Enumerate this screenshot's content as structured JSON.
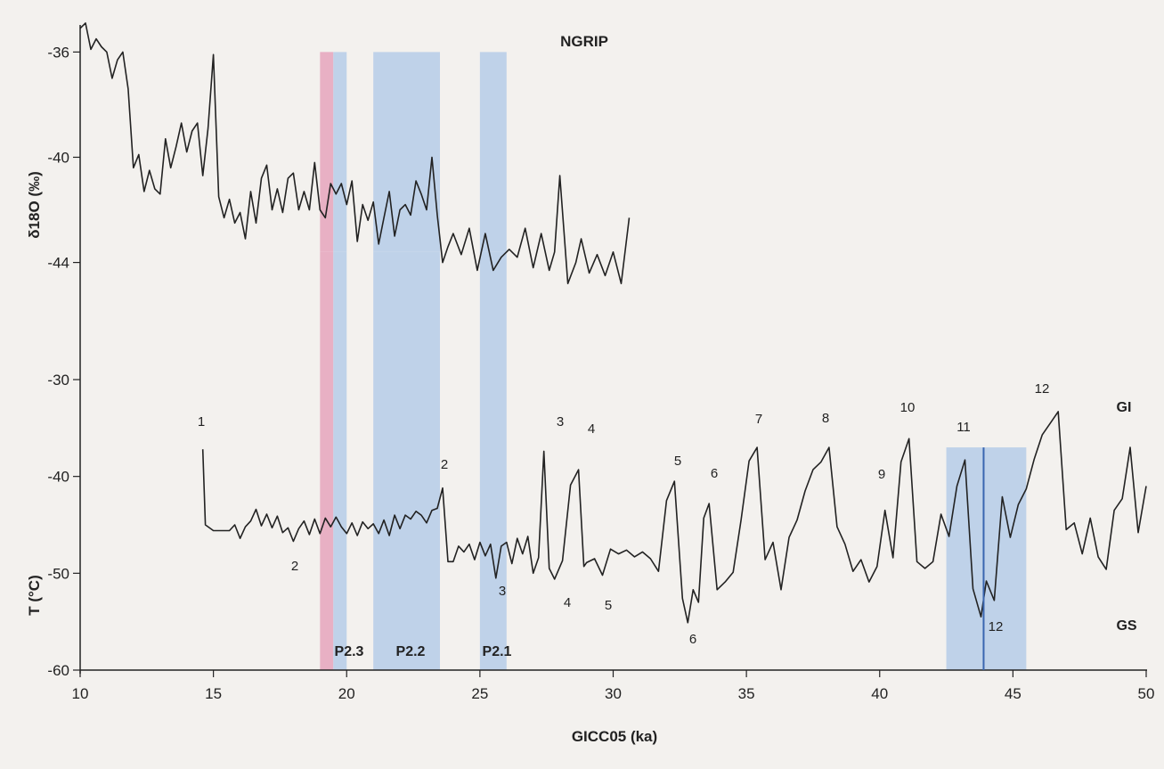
{
  "chart_data": [
    {
      "panel": "upper",
      "type": "line",
      "title": "NGRIP",
      "xlabel": "GICC05 (ka)",
      "ylabel": "δ18O (‰)",
      "ylim": [
        -45.2,
        -34.7
      ],
      "yticks": [
        "-36",
        "-40",
        "-44"
      ],
      "series": [
        {
          "x": [
            10.0,
            10.2,
            10.4,
            10.6,
            10.8,
            11.0,
            11.2,
            11.4,
            11.6,
            11.8,
            12.0,
            12.2,
            12.4,
            12.6,
            12.8,
            13.0,
            13.2,
            13.4,
            13.6,
            13.8,
            14.0,
            14.2,
            14.4,
            14.6,
            14.8,
            15.0,
            15.2,
            15.4,
            15.6,
            15.8,
            16.0,
            16.2,
            16.4,
            16.6,
            16.8,
            17.0,
            17.2,
            17.4,
            17.6,
            17.8,
            18.0,
            18.2,
            18.4,
            18.6,
            18.8,
            19.0,
            19.2,
            19.4,
            19.6,
            19.8,
            20.0,
            20.2,
            20.4,
            20.6,
            20.8,
            21.0,
            21.2,
            21.4,
            21.6,
            21.8,
            22.0,
            22.2,
            22.4,
            22.6,
            22.8,
            23.0,
            23.2,
            23.4,
            23.6,
            23.8,
            24.0,
            24.3,
            24.6,
            24.9,
            25.2,
            25.5,
            25.8,
            26.1,
            26.4,
            26.7,
            27.0,
            27.3,
            27.6,
            27.8,
            28.0,
            28.3,
            28.6,
            28.8,
            29.1,
            29.4,
            29.7,
            30.0,
            30.3,
            30.6
          ],
          "values": [
            -35.1,
            -34.9,
            -35.9,
            -35.5,
            -35.8,
            -36.0,
            -37.0,
            -36.3,
            -36.0,
            -37.4,
            -40.4,
            -39.9,
            -41.3,
            -40.5,
            -41.2,
            -41.4,
            -39.3,
            -40.4,
            -39.6,
            -38.7,
            -39.8,
            -39.0,
            -38.7,
            -40.7,
            -38.9,
            -36.1,
            -41.5,
            -42.3,
            -41.6,
            -42.5,
            -42.1,
            -43.1,
            -41.3,
            -42.5,
            -40.8,
            -40.3,
            -42.0,
            -41.2,
            -42.1,
            -40.8,
            -40.6,
            -42.0,
            -41.3,
            -42.0,
            -40.2,
            -42.0,
            -42.3,
            -41.0,
            -41.4,
            -41.0,
            -41.8,
            -40.9,
            -43.2,
            -41.8,
            -42.4,
            -41.7,
            -43.3,
            -42.3,
            -41.3,
            -43.0,
            -42.0,
            -41.8,
            -42.2,
            -40.9,
            -41.4,
            -42.0,
            -40.0,
            -42.2,
            -44.0,
            -43.4,
            -42.9,
            -43.7,
            -42.7,
            -44.3,
            -42.9,
            -44.3,
            -43.8,
            -43.5,
            -43.8,
            -42.7,
            -44.2,
            -42.9,
            -44.3,
            -43.6,
            -40.7,
            -44.8,
            -44.0,
            -43.1,
            -44.4,
            -43.7,
            -44.5,
            -43.6,
            -44.8,
            -42.3
          ]
        }
      ],
      "bands": [
        {
          "x": [
            19.0,
            19.5
          ],
          "color": "#e8b0c4"
        },
        {
          "x": [
            19.5,
            20.0
          ],
          "color": "#bfd2e9"
        },
        {
          "x": [
            21.0,
            23.5
          ],
          "color": "#bfd2e9"
        },
        {
          "x": [
            25.0,
            26.0
          ],
          "color": "#bfd2e9"
        }
      ]
    },
    {
      "panel": "lower",
      "type": "line",
      "xlabel": "GICC05 (ka)",
      "ylabel": "T (°C)",
      "xlim": [
        10,
        50
      ],
      "ylim": [
        -60,
        -30
      ],
      "xticks": [
        "10",
        "15",
        "20",
        "25",
        "30",
        "35",
        "40",
        "45",
        "50"
      ],
      "yticks": [
        "-30",
        "-40",
        "-50",
        "-60"
      ],
      "series": [
        {
          "x": [
            14.6,
            14.7,
            15.0,
            15.3,
            15.6,
            15.8,
            16.0,
            16.2,
            16.4,
            16.6,
            16.8,
            17.0,
            17.2,
            17.4,
            17.6,
            17.8,
            18.0,
            18.2,
            18.4,
            18.6,
            18.8,
            19.0,
            19.2,
            19.4,
            19.6,
            19.8,
            20.0,
            20.2,
            20.4,
            20.6,
            20.8,
            21.0,
            21.2,
            21.4,
            21.6,
            21.8,
            22.0,
            22.2,
            22.4,
            22.6,
            22.8,
            23.0,
            23.2,
            23.4,
            23.6,
            23.8,
            24.0,
            24.2,
            24.4,
            24.6,
            24.8,
            25.0,
            25.2,
            25.4,
            25.6,
            25.8,
            26.0,
            26.2,
            26.4,
            26.6,
            26.8,
            27.0,
            27.2,
            27.4,
            27.6,
            27.8,
            28.1,
            28.4,
            28.7,
            28.9,
            29.0,
            29.3,
            29.6,
            29.9,
            30.2,
            30.5,
            30.8,
            31.1,
            31.4,
            31.7,
            32.0,
            32.3,
            32.6,
            32.8,
            33.0,
            33.2,
            33.4,
            33.6,
            33.9,
            34.2,
            34.5,
            34.8,
            35.1,
            35.4,
            35.7,
            36.0,
            36.3,
            36.6,
            36.9,
            37.2,
            37.5,
            37.8,
            38.1,
            38.4,
            38.7,
            39.0,
            39.3,
            39.6,
            39.9,
            40.2,
            40.5,
            40.8,
            41.1,
            41.4,
            41.7,
            42.0,
            42.3,
            42.6,
            42.9,
            43.2,
            43.5,
            43.8,
            44.0,
            44.3,
            44.6,
            44.9,
            45.2,
            45.5,
            45.8,
            46.1,
            46.4,
            46.7,
            47.0,
            47.3,
            47.6,
            47.9,
            48.2,
            48.5,
            48.8,
            49.1,
            49.4,
            49.7,
            50.0
          ],
          "values": [
            -37.2,
            -45.0,
            -45.6,
            -45.6,
            -45.6,
            -45.0,
            -46.4,
            -45.2,
            -44.6,
            -43.4,
            -45.1,
            -43.9,
            -45.3,
            -44.1,
            -45.8,
            -45.3,
            -46.7,
            -45.4,
            -44.6,
            -46.0,
            -44.4,
            -45.9,
            -44.3,
            -45.2,
            -44.2,
            -45.2,
            -45.9,
            -44.8,
            -46.1,
            -44.7,
            -45.4,
            -44.9,
            -45.9,
            -44.5,
            -46.1,
            -44.0,
            -45.4,
            -44.0,
            -44.4,
            -43.6,
            -44.0,
            -44.8,
            -43.5,
            -43.3,
            -41.2,
            -48.8,
            -48.8,
            -47.2,
            -47.8,
            -47.0,
            -48.6,
            -46.8,
            -48.2,
            -47.0,
            -50.5,
            -47.2,
            -46.8,
            -49.0,
            -46.4,
            -48.0,
            -46.2,
            -50.0,
            -48.4,
            -37.4,
            -49.5,
            -50.6,
            -48.7,
            -40.9,
            -39.3,
            -49.3,
            -48.9,
            -48.5,
            -50.2,
            -47.5,
            -48.0,
            -47.6,
            -48.3,
            -47.8,
            -48.5,
            -49.8,
            -42.5,
            -40.5,
            -52.6,
            -55.1,
            -51.7,
            -53.0,
            -44.3,
            -42.8,
            -51.7,
            -50.9,
            -49.9,
            -44.5,
            -38.4,
            -37.0,
            -48.6,
            -46.8,
            -51.7,
            -46.3,
            -44.5,
            -41.5,
            -39.3,
            -38.5,
            -37.0,
            -45.2,
            -47.0,
            -49.8,
            -48.6,
            -50.9,
            -49.3,
            -43.5,
            -48.4,
            -38.5,
            -36.1,
            -48.8,
            -49.5,
            -48.8,
            -43.9,
            -46.2,
            -41.0,
            -38.3,
            -51.6,
            -54.5,
            -50.8,
            -52.8,
            -42.1,
            -46.3,
            -42.9,
            -41.3,
            -38.2,
            -35.7,
            -34.5,
            -33.3,
            -45.5,
            -44.8,
            -48.0,
            -44.3,
            -48.3,
            -49.6,
            -43.5,
            -42.3,
            -37.0,
            -45.8,
            -41.0
          ],
          "vline": 43.9
        }
      ],
      "bands": [
        {
          "x": [
            19.0,
            19.5
          ],
          "color": "#e8b0c4"
        },
        {
          "x": [
            19.5,
            20.0
          ],
          "color": "#bfd2e9"
        },
        {
          "x": [
            21.0,
            23.5
          ],
          "color": "#bfd2e9"
        },
        {
          "x": [
            25.0,
            26.0
          ],
          "color": "#bfd2e9"
        },
        {
          "x": [
            42.5,
            45.5
          ],
          "color": "#bfd2e9"
        }
      ],
      "band_labels": [
        "P2.3",
        "P2.2",
        "P2.1"
      ],
      "side_labels": {
        "top": "GI",
        "bottom": "GS"
      },
      "interstadial_labels": [
        "1",
        "2",
        "3",
        "4",
        "5",
        "6",
        "7",
        "8",
        "9",
        "10",
        "11",
        "12"
      ],
      "stadial_labels": [
        "2",
        "3",
        "4",
        "5",
        "6",
        "12"
      ],
      "line_color": "#222222",
      "vline_color": "#3a66b0"
    }
  ]
}
